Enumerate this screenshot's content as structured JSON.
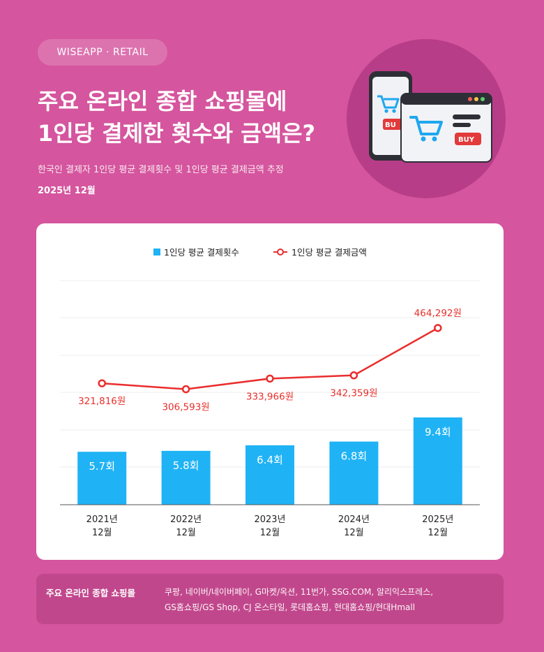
{
  "header": {
    "brand": "WISEAPP · RETAIL",
    "title_line1": "주요 온라인 종합 쇼핑몰에",
    "title_line2": "1인당 결제한 횟수와 금액은?",
    "subtitle": "한국인 결제자 1인당 평균 결제횟수 및 1인당 평균 결제금액 추정",
    "date": "2025년 12월"
  },
  "illustration": {
    "buy_label": "BUY",
    "phone_buy_label": "BU",
    "icons": [
      "smartphone-icon",
      "browser-window-icon",
      "shopping-cart-icon"
    ]
  },
  "chart_data": {
    "type": "bar",
    "title": "",
    "xlabel": "",
    "ylabel": "",
    "categories": [
      [
        "2021년",
        "12월"
      ],
      [
        "2022년",
        "12월"
      ],
      [
        "2023년",
        "12월"
      ],
      [
        "2024년",
        "12월"
      ],
      [
        "2025년",
        "12월"
      ]
    ],
    "series": [
      {
        "name": "1인당 평균 결제횟수",
        "type": "bar",
        "values": [
          5.7,
          5.8,
          6.4,
          6.8,
          9.4
        ],
        "labels": [
          "5.7회",
          "5.8회",
          "6.4회",
          "6.8회",
          "9.4회"
        ],
        "color": "#1fb3f5"
      },
      {
        "name": "1인당 평균 결제금액",
        "type": "line",
        "values": [
          321816,
          306593,
          333966,
          342359,
          464292
        ],
        "labels": [
          "321,816원",
          "306,593원",
          "333,966원",
          "342,359원",
          "464,292원"
        ],
        "color": "#ea2d2d"
      }
    ],
    "legend_position": "top-center",
    "grid": true
  },
  "footer": {
    "label": "주요 온라인 종합 쇼핑몰",
    "list_line1": "쿠팡, 네이버/네이버페이, G마켓/옥션, 11번가, SSG.COM, 알리익스프레스,",
    "list_line2": "GS홈쇼핑/GS Shop, CJ 온스타일, 롯데홈쇼핑, 현대홈쇼핑/현대Hmall"
  },
  "colors": {
    "background": "#d5559e",
    "bar": "#1fb3f5",
    "line": "#ea2d2d",
    "label_red": "#e8302b"
  }
}
